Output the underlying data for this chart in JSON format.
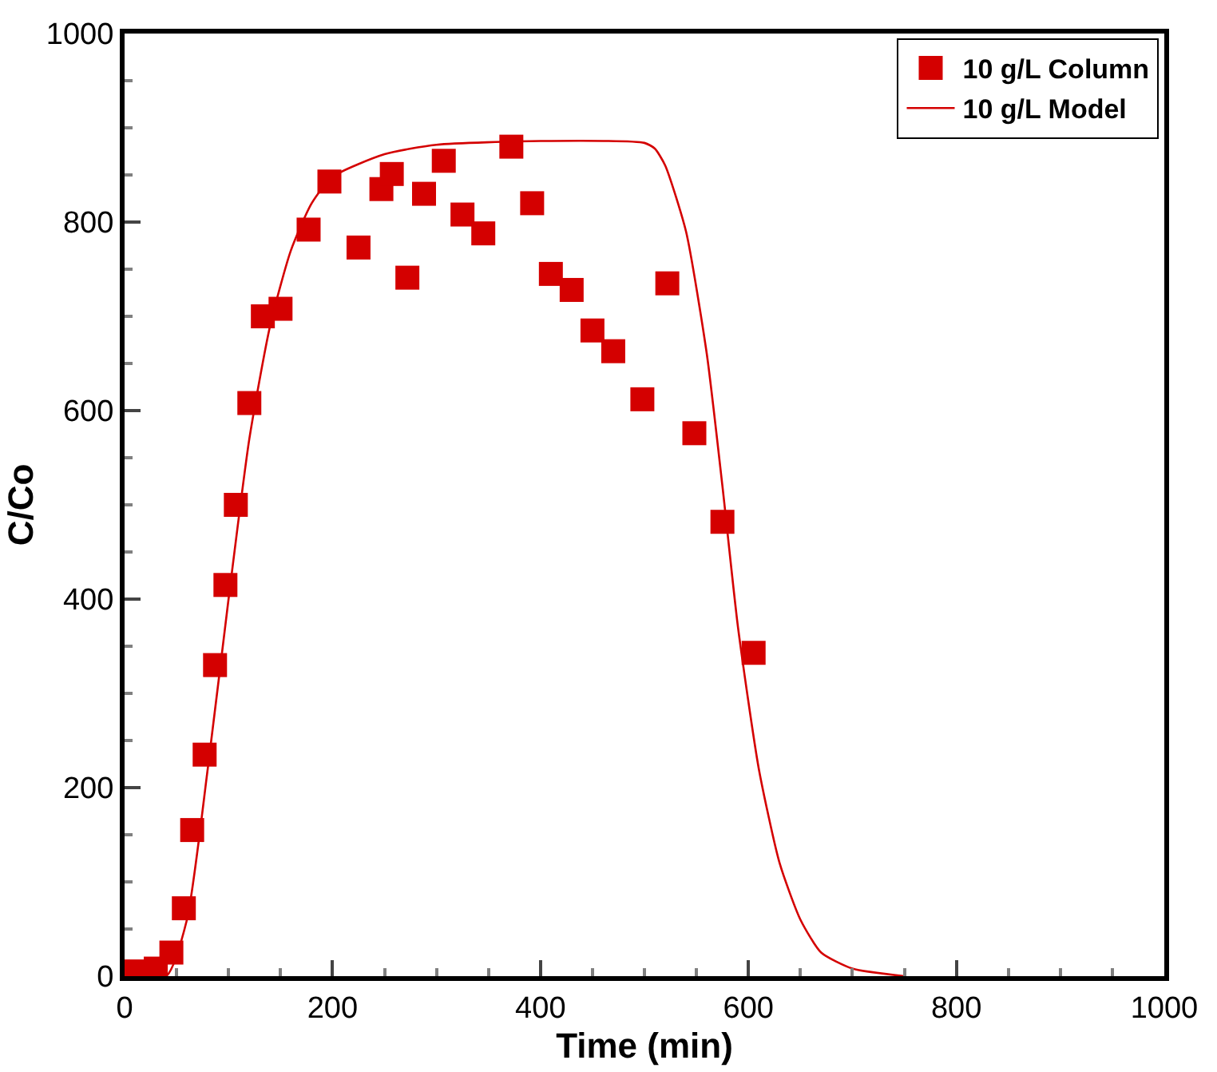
{
  "chart_data": {
    "type": "scatter",
    "xlabel": "Time (min)",
    "ylabel": "C/Co",
    "xlim": [
      0,
      1000
    ],
    "ylim": [
      0,
      1000
    ],
    "xticks": [
      0,
      200,
      400,
      600,
      800,
      1000
    ],
    "yticks": [
      0,
      200,
      400,
      600,
      800,
      1000
    ],
    "legend": "top right",
    "series": [
      {
        "name": "10 g/L Column",
        "color": "#d40000",
        "marker": "square",
        "x": [
          10,
          30,
          45,
          57,
          65,
          77,
          87,
          97,
          107,
          120,
          133,
          150,
          177,
          197,
          225,
          247,
          257,
          272,
          288,
          307,
          325,
          345,
          372,
          392,
          410,
          430,
          450,
          470,
          498,
          522,
          548,
          575,
          605
        ],
        "values": [
          5,
          8,
          25,
          72,
          155,
          235,
          330,
          415,
          500,
          608,
          700,
          708,
          792,
          843,
          773,
          835,
          851,
          741,
          830,
          865,
          808,
          788,
          880,
          820,
          745,
          728,
          685,
          663,
          612,
          735,
          576,
          482,
          343
        ]
      },
      {
        "name": "10 g/L Model",
        "color": "#d40000",
        "type": "line",
        "marker": "none",
        "x": [
          0,
          40,
          60,
          80,
          100,
          120,
          140,
          160,
          180,
          200,
          250,
          300,
          400,
          500,
          510,
          520,
          540,
          560,
          575,
          590,
          610,
          630,
          650,
          670,
          700,
          750
        ],
        "values": [
          0,
          0,
          60,
          220,
          400,
          570,
          690,
          770,
          820,
          848,
          872,
          882,
          886,
          884,
          878,
          860,
          790,
          660,
          520,
          370,
          220,
          120,
          60,
          25,
          8,
          0
        ]
      }
    ]
  }
}
